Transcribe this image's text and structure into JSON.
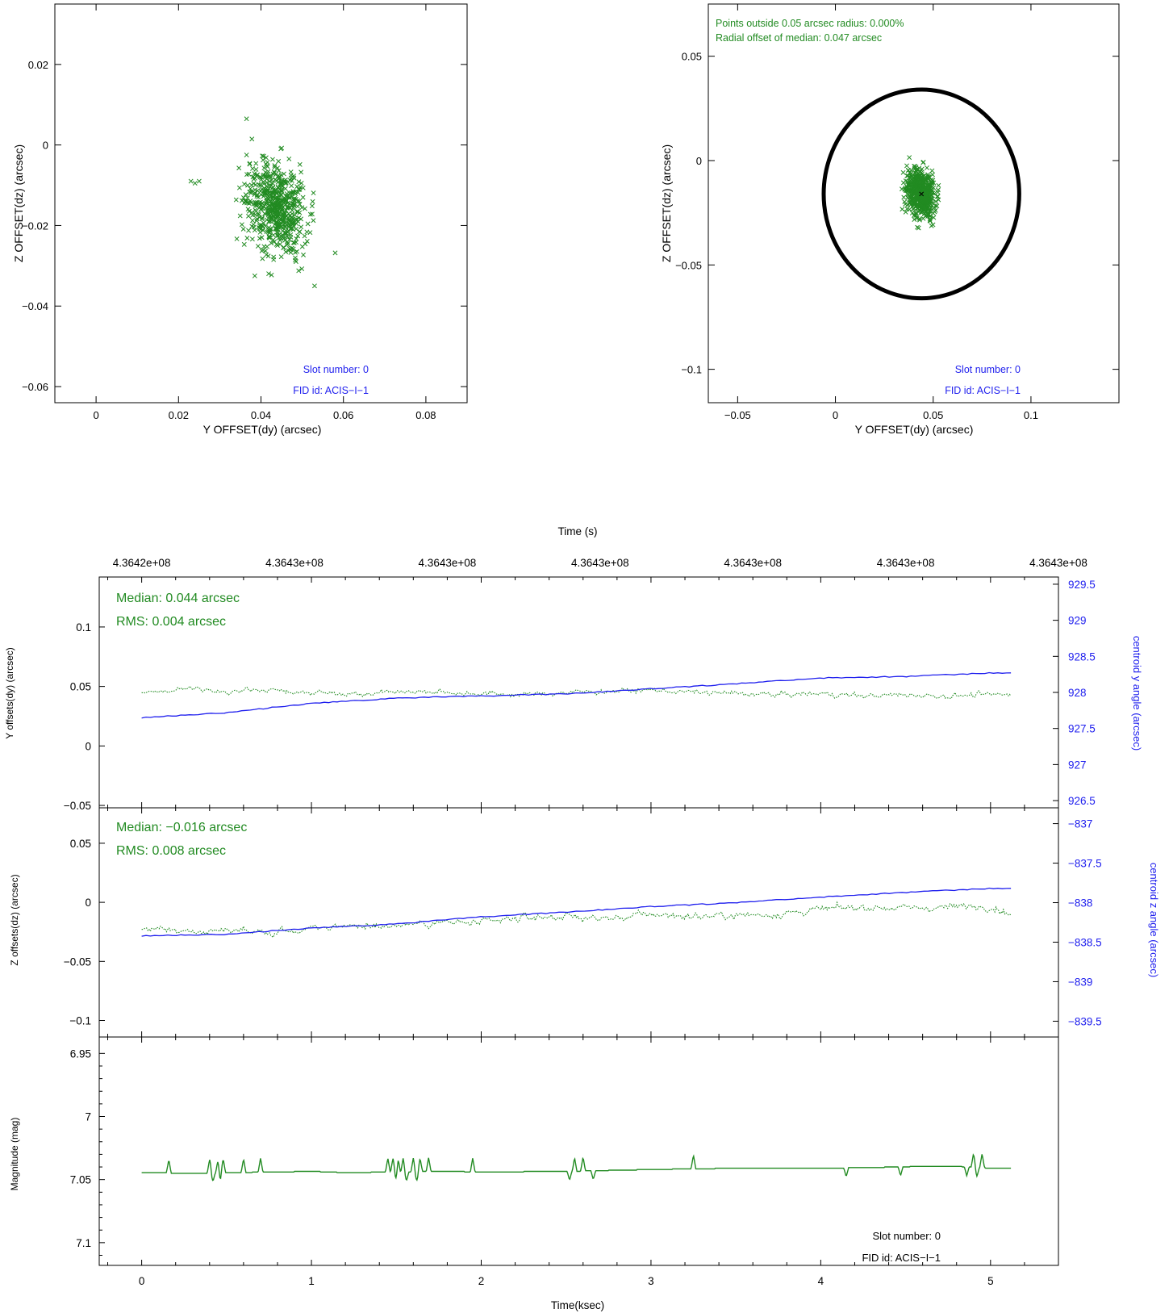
{
  "colors": {
    "green": "#228B22",
    "blue": "#1E1EEE",
    "black": "#000000",
    "background": "#ffffff"
  },
  "chart_data": [
    {
      "id": "scatter_raw",
      "type": "scatter",
      "xlabel": "Y OFFSET(dy) (arcsec)",
      "ylabel": "Z OFFSET(dz) (arcsec)",
      "xlim": [
        -0.01,
        0.09
      ],
      "ylim": [
        -0.064,
        0.035
      ],
      "xticks": [
        0,
        0.02,
        0.04,
        0.06,
        0.08
      ],
      "xtick_labels": [
        "0",
        "0.02",
        "0.04",
        "0.06",
        "0.08"
      ],
      "yticks": [
        -0.06,
        -0.04,
        -0.02,
        0,
        0.02
      ],
      "ytick_labels": [
        "−0.06",
        "−0.04",
        "−0.02",
        "0",
        "0.02"
      ],
      "marker": "x",
      "cluster": {
        "center": [
          0.044,
          -0.016
        ],
        "spread": [
          0.005,
          0.008
        ],
        "count": 600
      },
      "outliers": [
        [
          0.023,
          -0.009
        ],
        [
          0.024,
          -0.0095
        ],
        [
          0.025,
          -0.009
        ],
        [
          0.0385,
          -0.0325
        ],
        [
          0.058,
          -0.0268
        ],
        [
          0.053,
          -0.035
        ],
        [
          0.0365,
          0.0065
        ]
      ],
      "annotations": [
        "Slot number: 0",
        "FID id: ACIS−I−1"
      ]
    },
    {
      "id": "scatter_circle",
      "type": "scatter",
      "xlabel": "Y OFFSET(dy) (arcsec)",
      "ylabel": "Z OFFSET(dz) (arcsec)",
      "xlim": [
        -0.065,
        0.145
      ],
      "ylim": [
        -0.116,
        0.075
      ],
      "xticks": [
        -0.05,
        0,
        0.05,
        0.1
      ],
      "xtick_labels": [
        "−0.05",
        "0",
        "0.05",
        "0.1"
      ],
      "yticks": [
        -0.1,
        -0.05,
        0,
        0.05
      ],
      "ytick_labels": [
        "−0.1",
        "−0.05",
        "0",
        "0.05"
      ],
      "marker": "x",
      "circle": {
        "center": [
          0.044,
          -0.016
        ],
        "radius": 0.05
      },
      "median_marker": [
        0.044,
        -0.016
      ],
      "cluster": {
        "center": [
          0.044,
          -0.016
        ],
        "spread": [
          0.005,
          0.008
        ],
        "count": 600
      },
      "stats_lines": [
        "Points outside 0.05 arcsec radius: 0.000%",
        "Radial offset of median: 0.047 arcsec"
      ],
      "annotations": [
        "Slot number: 0",
        "FID id: ACIS−I−1"
      ]
    },
    {
      "id": "y_offsets",
      "type": "line",
      "top_axis_label": "Time (s)",
      "top_tick_labels": [
        "4.3642e+08",
        "4.3643e+08",
        "4.3643e+08",
        "4.3643e+08",
        "4.3643e+08",
        "4.3643e+08",
        "4.3643e+08"
      ],
      "ylabel": "Y offsets(dy) (arcsec)",
      "ylim": [
        -0.052,
        0.142
      ],
      "yticks": [
        -0.05,
        0,
        0.05,
        0.1
      ],
      "ytick_labels": [
        "−0.05",
        "0",
        "0.05",
        "0.1"
      ],
      "y2label": "centroid y angle (arcsec)",
      "y2lim": [
        926.4,
        929.6
      ],
      "y2ticks": [
        926.5,
        927,
        927.5,
        928,
        928.5,
        929,
        929.5
      ],
      "y2tick_labels": [
        "926.5",
        "927",
        "927.5",
        "928",
        "928.5",
        "929",
        "929.5"
      ],
      "xlim": [
        -0.25,
        5.4
      ],
      "series": [
        {
          "style": "dotted",
          "axis": "left",
          "x": [
            0,
            0.25,
            0.5,
            0.75,
            1,
            1.25,
            1.5,
            1.75,
            2,
            2.25,
            2.5,
            2.75,
            3,
            3.25,
            3.5,
            3.75,
            4,
            4.25,
            4.5,
            4.75,
            5,
            5.12
          ],
          "values": [
            0.045,
            0.048,
            0.046,
            0.047,
            0.045,
            0.044,
            0.046,
            0.045,
            0.044,
            0.043,
            0.045,
            0.046,
            0.047,
            0.045,
            0.044,
            0.043,
            0.044,
            0.042,
            0.043,
            0.042,
            0.043,
            0.043
          ]
        },
        {
          "style": "solid",
          "axis": "right",
          "x": [
            0,
            0.5,
            1,
            1.5,
            2,
            2.5,
            3,
            3.5,
            4,
            4.5,
            5,
            5.12
          ],
          "values": [
            927.65,
            927.72,
            927.85,
            927.92,
            927.95,
            927.98,
            928.05,
            928.12,
            928.2,
            928.22,
            928.27,
            928.27
          ]
        }
      ],
      "annotations": [
        "Median: 0.044 arcsec",
        "RMS: 0.004 arcsec"
      ]
    },
    {
      "id": "z_offsets",
      "type": "line",
      "ylabel": "Z offsets(dz) (arcsec)",
      "ylim": [
        -0.114,
        0.08
      ],
      "yticks": [
        -0.1,
        -0.05,
        0,
        0.05
      ],
      "ytick_labels": [
        "−0.1",
        "−0.05",
        "0",
        "0.05"
      ],
      "y2label": "centroid z angle (arcsec)",
      "y2lim": [
        -839.7,
        -836.8
      ],
      "y2ticks": [
        -839.5,
        -839,
        -838.5,
        -838,
        -837.5,
        -837
      ],
      "y2tick_labels": [
        "−839.5",
        "−839",
        "−838.5",
        "−838",
        "−837.5",
        "−837"
      ],
      "xlim": [
        -0.25,
        5.4
      ],
      "series": [
        {
          "style": "dotted",
          "axis": "left",
          "x": [
            0,
            0.25,
            0.5,
            0.75,
            1,
            1.25,
            1.5,
            1.75,
            2,
            2.25,
            2.5,
            2.75,
            3,
            3.25,
            3.5,
            3.75,
            4,
            4.25,
            4.5,
            4.75,
            5,
            5.12
          ],
          "values": [
            -0.022,
            -0.025,
            -0.024,
            -0.026,
            -0.022,
            -0.02,
            -0.019,
            -0.017,
            -0.018,
            -0.013,
            -0.012,
            -0.014,
            -0.01,
            -0.012,
            -0.011,
            -0.01,
            -0.006,
            -0.004,
            -0.005,
            -0.004,
            -0.003,
            -0.01
          ]
        },
        {
          "style": "solid",
          "axis": "right",
          "x": [
            0,
            0.5,
            1,
            1.5,
            2,
            2.5,
            3,
            3.5,
            4,
            4.5,
            5,
            5.12
          ],
          "values": [
            -838.42,
            -838.4,
            -838.32,
            -838.27,
            -838.18,
            -838.12,
            -838.05,
            -838.0,
            -837.93,
            -837.87,
            -837.82,
            -837.82
          ]
        }
      ],
      "annotations": [
        "Median: −0.016 arcsec",
        "RMS: 0.008 arcsec"
      ]
    },
    {
      "id": "magnitude",
      "type": "line",
      "xlabel": "Time(ksec)",
      "ylabel": "Magnitude (mag)",
      "ylim": [
        7.118,
        6.937
      ],
      "yticks": [
        6.95,
        7,
        7.05,
        7.1
      ],
      "ytick_labels": [
        "6.95",
        "7",
        "7.05",
        "7.1"
      ],
      "xlim": [
        -0.25,
        5.4
      ],
      "xticks": [
        0,
        1,
        2,
        3,
        4,
        5
      ],
      "xtick_labels": [
        "0",
        "1",
        "2",
        "3",
        "4",
        "5"
      ],
      "series": [
        {
          "style": "solid",
          "x": [
            0,
            0.3,
            0.5,
            0.8,
            1.0,
            1.2,
            1.5,
            1.8,
            2.0,
            2.5,
            3.0,
            3.5,
            4.0,
            4.3,
            4.6,
            4.8,
            5.0,
            5.12
          ],
          "values": [
            7.0445,
            7.045,
            7.0445,
            7.044,
            7.0435,
            7.0445,
            7.044,
            7.0435,
            7.044,
            7.0435,
            7.042,
            7.041,
            7.041,
            7.0405,
            7.0395,
            7.0395,
            7.041,
            7.041
          ]
        }
      ],
      "spikes_up": [
        0.16,
        0.4,
        0.45,
        0.48,
        0.6,
        0.7,
        1.45,
        1.48,
        1.51,
        1.54,
        1.6,
        1.64,
        1.69,
        1.95,
        2.55,
        2.6,
        3.25,
        4.9,
        4.95
      ],
      "spikes_down": [
        0.42,
        0.46,
        1.5,
        1.56,
        1.62,
        2.52,
        2.66,
        4.15,
        4.47,
        4.86,
        4.92
      ],
      "annotations": [
        "Slot number: 0",
        "FID id: ACIS−I−1"
      ]
    }
  ]
}
